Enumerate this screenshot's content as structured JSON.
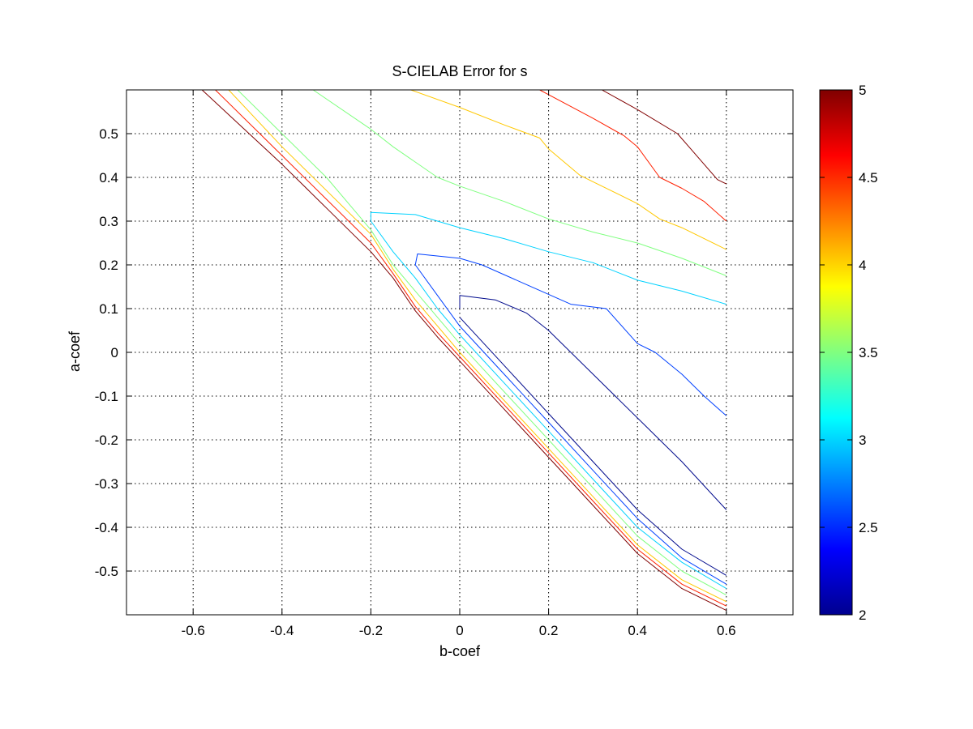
{
  "chart_data": {
    "type": "contour",
    "title": "S-CIELAB Error for s",
    "xlabel": "b-coef",
    "ylabel": "a-coef",
    "xlim": [
      -0.75,
      0.75
    ],
    "ylim": [
      -0.6,
      0.6
    ],
    "x_ticks": [
      -0.6,
      -0.4,
      -0.2,
      0,
      0.2,
      0.4,
      0.6
    ],
    "x_tick_labels": [
      "-0.6",
      "-0.4",
      "-0.2",
      "0",
      "0.2",
      "0.4",
      "0.6"
    ],
    "y_ticks": [
      -0.5,
      -0.4,
      -0.3,
      -0.2,
      -0.1,
      0,
      0.1,
      0.2,
      0.3,
      0.4,
      0.5
    ],
    "y_tick_labels": [
      "-0.5",
      "-0.4",
      "-0.3",
      "-0.2",
      "-0.1",
      "0",
      "0.1",
      "0.2",
      "0.3",
      "0.4",
      "0.5"
    ],
    "grid": true,
    "colormap": "jet",
    "colorbar": {
      "range": [
        2,
        5
      ],
      "ticks": [
        2,
        2.5,
        3,
        3.5,
        4,
        4.5,
        5
      ],
      "tick_labels": [
        "2",
        "2.5",
        "3",
        "3.5",
        "4",
        "4.5",
        "5"
      ],
      "position": "right"
    },
    "contours": [
      {
        "level": 2.1,
        "color": "#000a8c",
        "points": [
          [
            0.0,
            0.1
          ],
          [
            0.0,
            0.13
          ],
          [
            0.08,
            0.12
          ],
          [
            0.15,
            0.09
          ],
          [
            0.2,
            0.05
          ],
          [
            0.3,
            -0.05
          ],
          [
            0.4,
            -0.15
          ],
          [
            0.5,
            -0.25
          ],
          [
            0.6,
            -0.36
          ]
        ]
      },
      {
        "level": 2.1,
        "color": "#000a8c",
        "points": [
          [
            0.0,
            0.08
          ],
          [
            0.1,
            -0.03
          ],
          [
            0.2,
            -0.14
          ],
          [
            0.3,
            -0.25
          ],
          [
            0.4,
            -0.36
          ],
          [
            0.5,
            -0.45
          ],
          [
            0.6,
            -0.51
          ]
        ]
      },
      {
        "level": 2.5,
        "color": "#0040ff",
        "points": [
          [
            -0.1,
            0.2
          ],
          [
            -0.095,
            0.225
          ],
          [
            0.0,
            0.215
          ],
          [
            0.05,
            0.2
          ],
          [
            0.15,
            0.155
          ],
          [
            0.25,
            0.11
          ],
          [
            0.33,
            0.1
          ],
          [
            0.4,
            0.02
          ],
          [
            0.44,
            0.0
          ],
          [
            0.5,
            -0.05
          ],
          [
            0.55,
            -0.1
          ],
          [
            0.6,
            -0.145
          ]
        ]
      },
      {
        "level": 2.5,
        "color": "#0040ff",
        "points": [
          [
            -0.1,
            0.2
          ],
          [
            -0.05,
            0.13
          ],
          [
            0.0,
            0.06
          ],
          [
            0.1,
            -0.05
          ],
          [
            0.2,
            -0.16
          ],
          [
            0.3,
            -0.27
          ],
          [
            0.4,
            -0.38
          ],
          [
            0.5,
            -0.47
          ],
          [
            0.6,
            -0.53
          ]
        ]
      },
      {
        "level": 3.0,
        "color": "#00d2ff",
        "points": [
          [
            -0.2,
            0.3
          ],
          [
            -0.2,
            0.32
          ],
          [
            -0.1,
            0.315
          ],
          [
            0.0,
            0.285
          ],
          [
            0.1,
            0.26
          ],
          [
            0.2,
            0.23
          ],
          [
            0.3,
            0.205
          ],
          [
            0.4,
            0.165
          ],
          [
            0.5,
            0.14
          ],
          [
            0.6,
            0.11
          ]
        ]
      },
      {
        "level": 3.0,
        "color": "#00d2ff",
        "points": [
          [
            -0.2,
            0.3
          ],
          [
            -0.15,
            0.23
          ],
          [
            -0.1,
            0.17
          ],
          [
            -0.05,
            0.1
          ],
          [
            0.0,
            0.04
          ],
          [
            0.1,
            -0.07
          ],
          [
            0.2,
            -0.18
          ],
          [
            0.3,
            -0.29
          ],
          [
            0.4,
            -0.4
          ],
          [
            0.5,
            -0.48
          ],
          [
            0.6,
            -0.54
          ]
        ]
      },
      {
        "level": 3.5,
        "color": "#80ff80",
        "points": [
          [
            -0.5,
            0.6
          ],
          [
            -0.4,
            0.5
          ],
          [
            -0.3,
            0.4
          ],
          [
            -0.2,
            0.28
          ],
          [
            -0.15,
            0.2
          ],
          [
            -0.1,
            0.14
          ],
          [
            -0.05,
            0.08
          ],
          [
            0.0,
            0.02
          ],
          [
            0.1,
            -0.09
          ],
          [
            0.2,
            -0.2
          ],
          [
            0.3,
            -0.31
          ],
          [
            0.4,
            -0.42
          ],
          [
            0.5,
            -0.5
          ],
          [
            0.6,
            -0.555
          ]
        ]
      },
      {
        "level": 3.5,
        "color": "#80ff80",
        "points": [
          [
            -0.33,
            0.6
          ],
          [
            -0.2,
            0.51
          ],
          [
            -0.15,
            0.47
          ],
          [
            -0.05,
            0.4
          ],
          [
            0.0,
            0.38
          ],
          [
            0.1,
            0.345
          ],
          [
            0.2,
            0.305
          ],
          [
            0.3,
            0.275
          ],
          [
            0.4,
            0.25
          ],
          [
            0.5,
            0.215
          ],
          [
            0.6,
            0.175
          ]
        ]
      },
      {
        "level": 4.0,
        "color": "#ffc800",
        "points": [
          [
            -0.52,
            0.6
          ],
          [
            -0.4,
            0.47
          ],
          [
            -0.3,
            0.37
          ],
          [
            -0.2,
            0.27
          ],
          [
            -0.15,
            0.19
          ],
          [
            -0.1,
            0.12
          ],
          [
            -0.05,
            0.06
          ],
          [
            0.0,
            0.0
          ],
          [
            0.1,
            -0.11
          ],
          [
            0.2,
            -0.22
          ],
          [
            0.3,
            -0.33
          ],
          [
            0.4,
            -0.44
          ],
          [
            0.5,
            -0.52
          ],
          [
            0.6,
            -0.57
          ]
        ]
      },
      {
        "level": 4.0,
        "color": "#ffc800",
        "points": [
          [
            -0.11,
            0.6
          ],
          [
            0.0,
            0.56
          ],
          [
            0.1,
            0.52
          ],
          [
            0.18,
            0.49
          ],
          [
            0.2,
            0.465
          ],
          [
            0.27,
            0.405
          ],
          [
            0.3,
            0.39
          ],
          [
            0.4,
            0.34
          ],
          [
            0.45,
            0.305
          ],
          [
            0.5,
            0.285
          ],
          [
            0.6,
            0.235
          ]
        ]
      },
      {
        "level": 4.5,
        "color": "#ff2000",
        "points": [
          [
            -0.55,
            0.6
          ],
          [
            -0.4,
            0.45
          ],
          [
            -0.3,
            0.35
          ],
          [
            -0.2,
            0.25
          ],
          [
            -0.15,
            0.18
          ],
          [
            -0.1,
            0.105
          ],
          [
            -0.05,
            0.045
          ],
          [
            0.0,
            -0.01
          ],
          [
            0.1,
            -0.12
          ],
          [
            0.2,
            -0.23
          ],
          [
            0.3,
            -0.34
          ],
          [
            0.4,
            -0.45
          ],
          [
            0.5,
            -0.53
          ],
          [
            0.6,
            -0.58
          ]
        ]
      },
      {
        "level": 4.5,
        "color": "#ff2000",
        "points": [
          [
            0.18,
            0.6
          ],
          [
            0.3,
            0.535
          ],
          [
            0.37,
            0.495
          ],
          [
            0.4,
            0.47
          ],
          [
            0.45,
            0.4
          ],
          [
            0.5,
            0.375
          ],
          [
            0.55,
            0.345
          ],
          [
            0.6,
            0.3
          ]
        ]
      },
      {
        "level": 5.0,
        "color": "#800000",
        "points": [
          [
            -0.58,
            0.6
          ],
          [
            -0.4,
            0.43
          ],
          [
            -0.3,
            0.33
          ],
          [
            -0.2,
            0.23
          ],
          [
            -0.15,
            0.17
          ],
          [
            -0.1,
            0.095
          ],
          [
            -0.05,
            0.035
          ],
          [
            0.0,
            -0.02
          ],
          [
            0.1,
            -0.13
          ],
          [
            0.2,
            -0.24
          ],
          [
            0.3,
            -0.35
          ],
          [
            0.4,
            -0.46
          ],
          [
            0.5,
            -0.54
          ],
          [
            0.6,
            -0.59
          ]
        ]
      },
      {
        "level": 5.0,
        "color": "#800000",
        "points": [
          [
            0.32,
            0.6
          ],
          [
            0.4,
            0.555
          ],
          [
            0.49,
            0.5
          ],
          [
            0.52,
            0.465
          ],
          [
            0.55,
            0.43
          ],
          [
            0.58,
            0.395
          ],
          [
            0.6,
            0.385
          ]
        ]
      }
    ]
  }
}
